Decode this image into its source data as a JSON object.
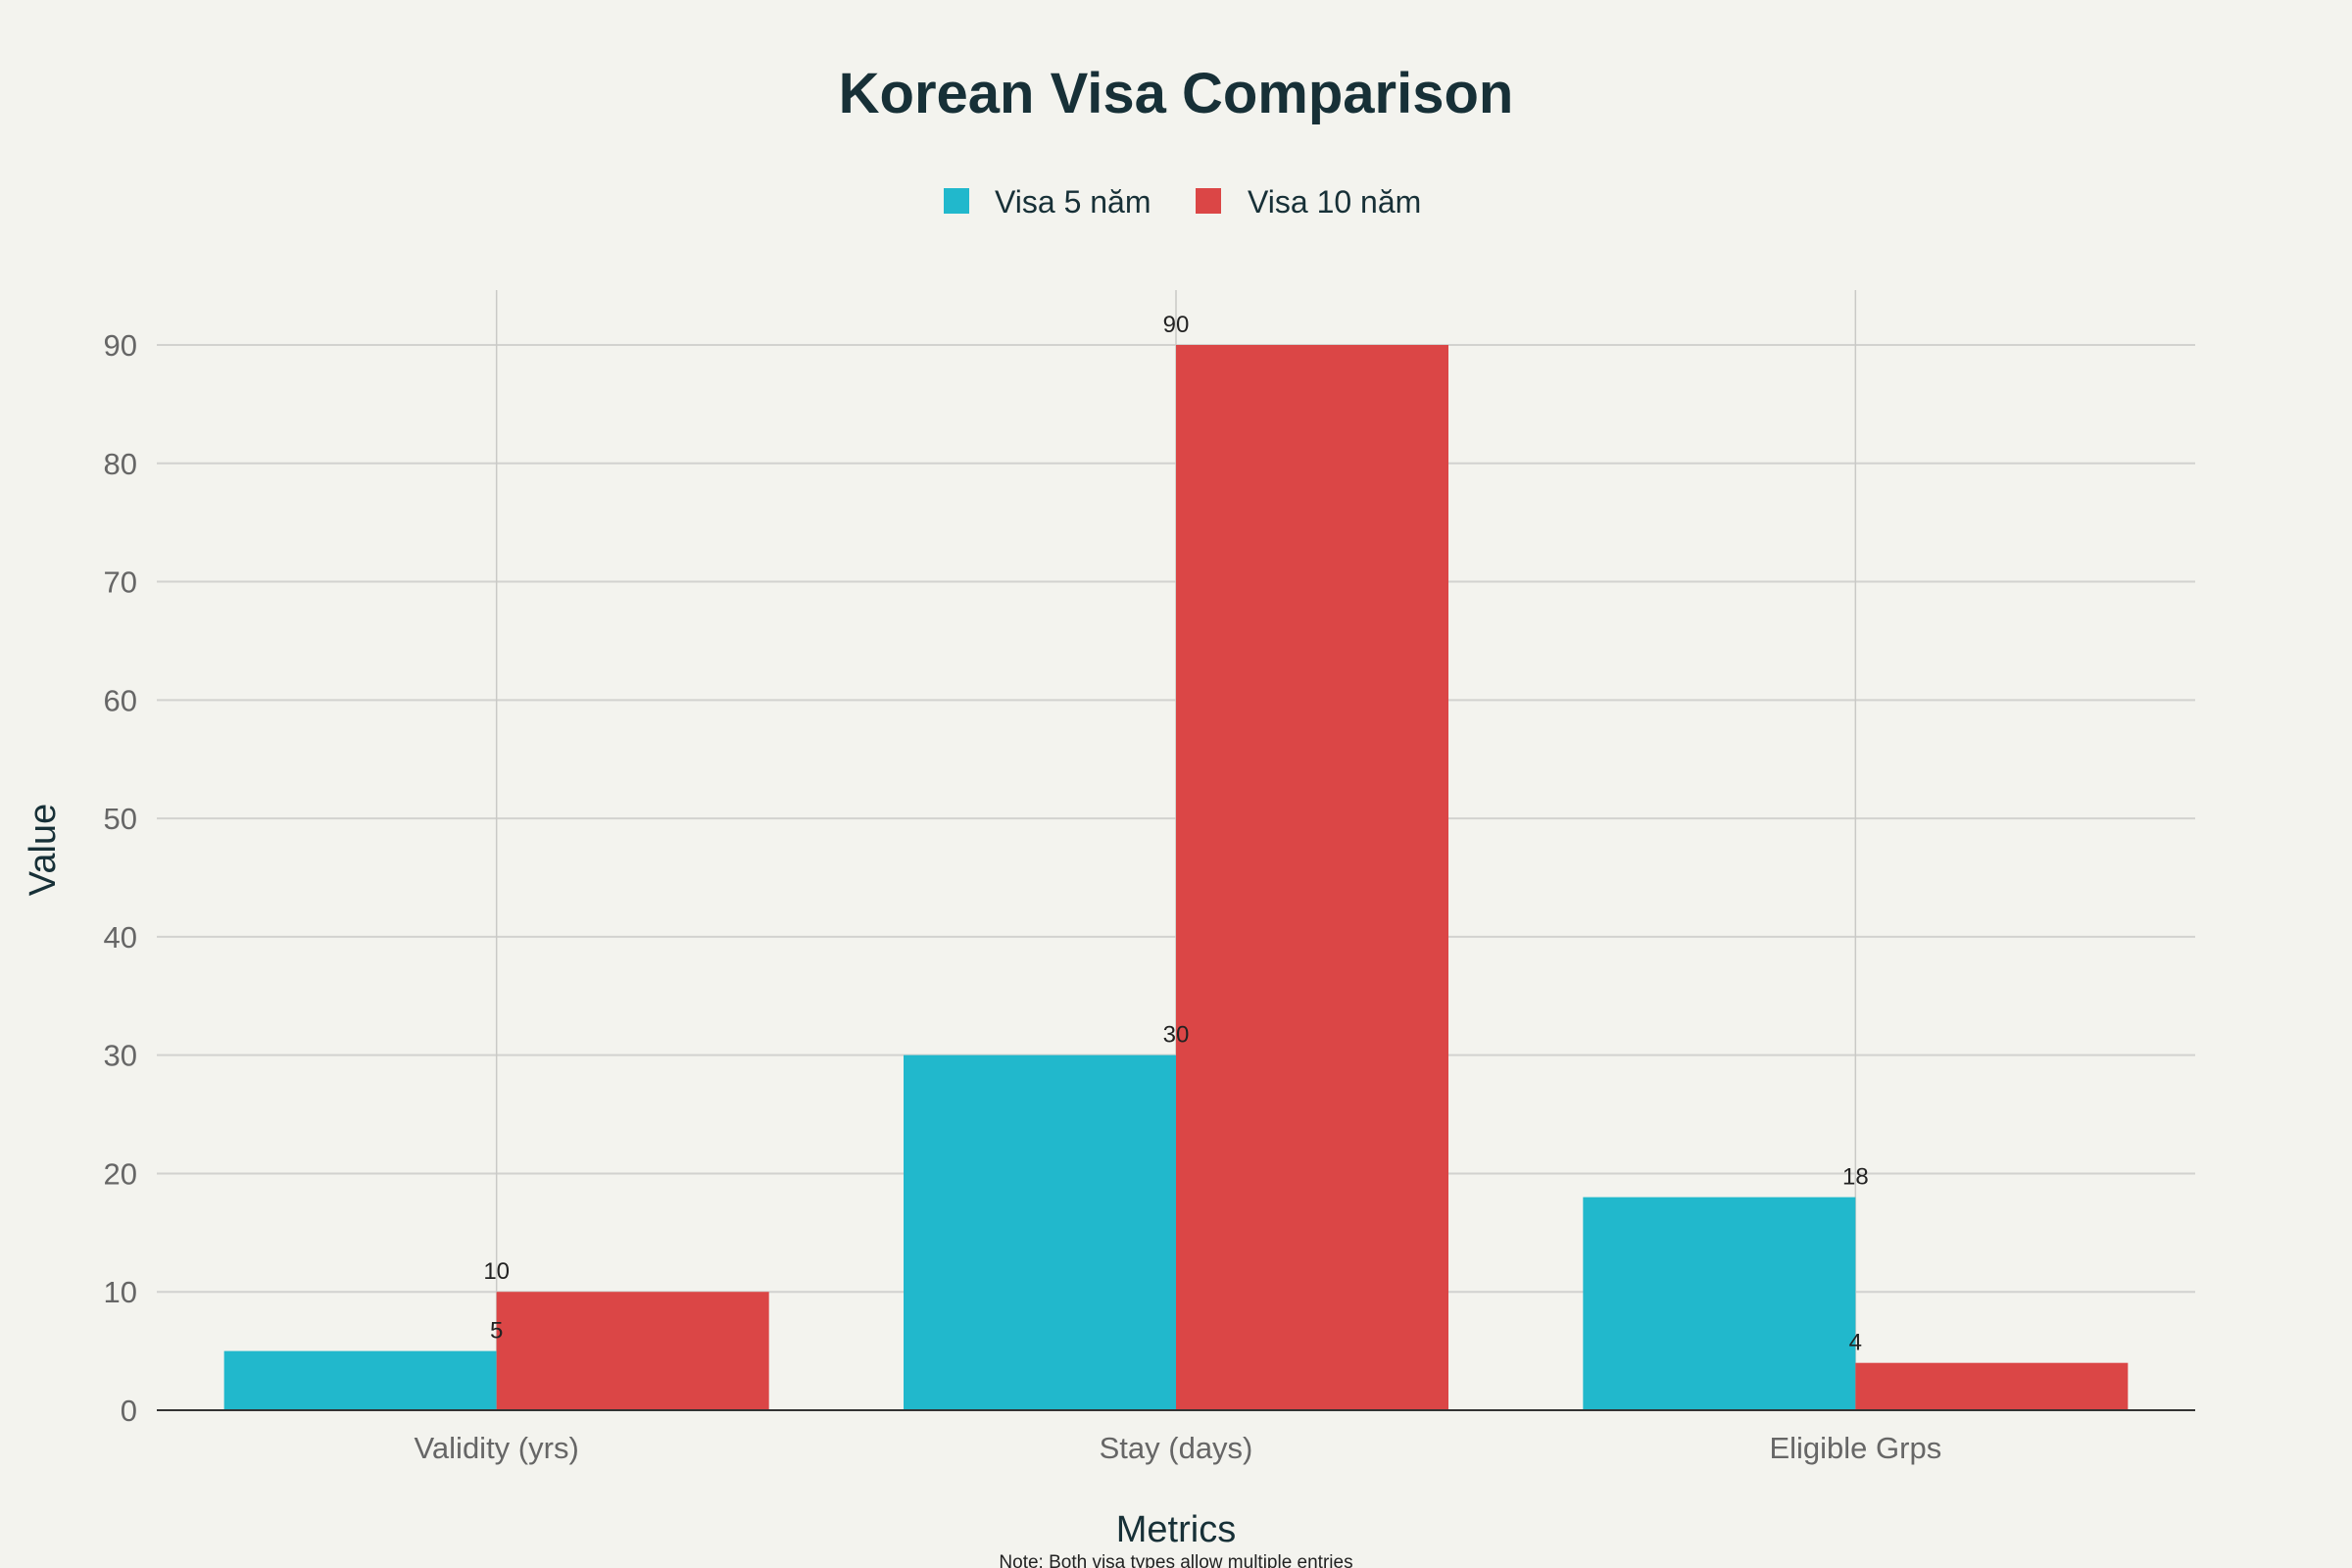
{
  "chart_data": {
    "type": "bar",
    "title": "Korean Visa Comparison",
    "xlabel": "Metrics",
    "ylabel": "Value",
    "categories": [
      "Validity (yrs)",
      "Stay (days)",
      "Eligible Grps"
    ],
    "series": [
      {
        "name": "Visa 5 năm",
        "color": "#21b8cc",
        "values": [
          5,
          30,
          18
        ]
      },
      {
        "name": "Visa 10 năm",
        "color": "#db4646",
        "values": [
          10,
          90,
          4
        ]
      }
    ],
    "ylim": [
      0,
      95
    ],
    "yticks": [
      0,
      10,
      20,
      30,
      40,
      50,
      60,
      70,
      80,
      90
    ],
    "grid": true,
    "legend_position": "top-center",
    "note": "Note: Both visa types allow multiple entries"
  }
}
